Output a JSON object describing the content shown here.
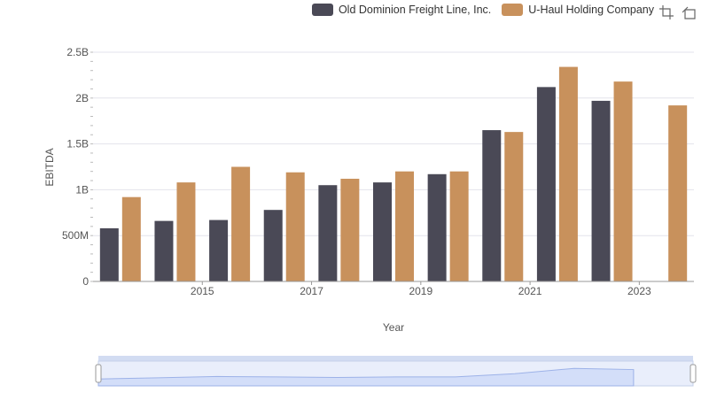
{
  "chart_data": {
    "type": "bar",
    "xlabel": "Year",
    "ylabel": "EBITDA",
    "ylim": [
      0,
      2500000000
    ],
    "y_ticks": [
      {
        "value": 0,
        "label": "0"
      },
      {
        "value": 500000000,
        "label": "500M"
      },
      {
        "value": 1000000000,
        "label": "1B"
      },
      {
        "value": 1500000000,
        "label": "1.5B"
      },
      {
        "value": 2000000000,
        "label": "2B"
      },
      {
        "value": 2500000000,
        "label": "2.5B"
      }
    ],
    "categories": [
      "2014",
      "2015",
      "2016",
      "2017",
      "2018",
      "2019",
      "2020",
      "2021",
      "2022",
      "2023",
      "2024"
    ],
    "x_tick_labels": [
      "2015",
      "2017",
      "2019",
      "2021",
      "2023"
    ],
    "grid": true,
    "legend_position": "top-right",
    "series": [
      {
        "name": "Old Dominion Freight Line, Inc.",
        "color": "#4a4956",
        "values": [
          580000000,
          660000000,
          670000000,
          780000000,
          1050000000,
          1080000000,
          1170000000,
          1650000000,
          2120000000,
          1970000000,
          null
        ]
      },
      {
        "name": "U-Haul Holding Company",
        "color": "#c8915c",
        "values": [
          920000000,
          1080000000,
          1250000000,
          1190000000,
          1120000000,
          1200000000,
          1200000000,
          1630000000,
          2340000000,
          2180000000,
          1920000000
        ]
      }
    ]
  },
  "toolbar": {
    "zoom_icon": "zoom-icon",
    "reset_icon": "reset-zoom-icon"
  }
}
